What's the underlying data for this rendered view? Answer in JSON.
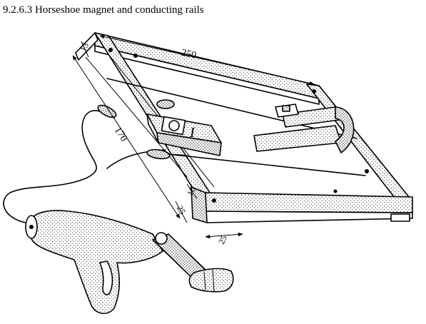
{
  "caption": "9.2.6.3 Horseshoe magnet and conducting rails",
  "dimensions": {
    "rail_length": "250",
    "rail_width": "170",
    "top_thickness": "13",
    "bar_height": "10",
    "bar_depth": "25",
    "base_width": "25"
  },
  "markings": {
    "meter_label": "I"
  },
  "colors": {
    "ink": "#000000",
    "paper": "#ffffff"
  }
}
